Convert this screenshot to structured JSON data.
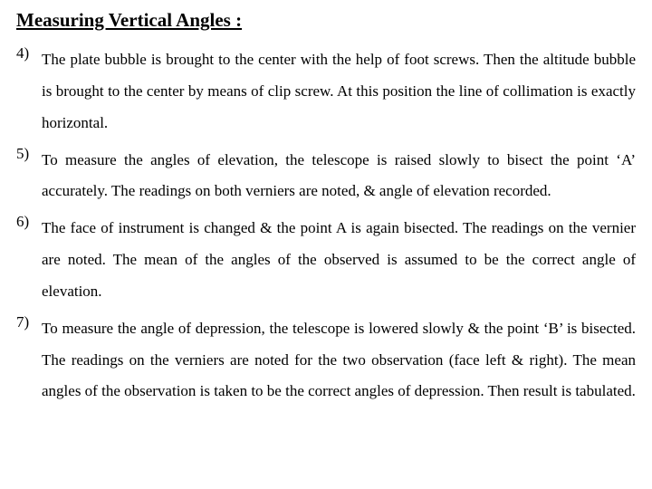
{
  "heading": "Measuring Vertical Angles :",
  "items": [
    {
      "marker": "4)",
      "text": "The plate bubble is brought to the center with the help of foot screws. Then the altitude bubble is brought to the center by means of clip screw. At this position the line of collimation is exactly horizontal."
    },
    {
      "marker": "5)",
      "text": "To measure the angles of elevation, the telescope is raised slowly to bisect the point ‘A’ accurately. The readings on both verniers are noted, & angle of elevation recorded."
    },
    {
      "marker": "6)",
      "text": "The face of instrument is changed & the point A is again bisected. The readings on the vernier are noted. The mean of the angles of the observed is assumed to be the correct angle of elevation."
    },
    {
      "marker": "7)",
      "text": "To measure the angle of depression, the telescope is lowered slowly & the point ‘B’ is bisected. The readings on the verniers are noted for the two observation (face left & right). The mean angles of the observation is taken to be the correct angles of depression. Then result is tabulated."
    }
  ],
  "colors": {
    "background": "#ffffff",
    "text": "#000000"
  },
  "typography": {
    "heading_fontsize": 21,
    "heading_weight": "bold",
    "body_fontsize": 17,
    "line_height": 2.05,
    "font_family": "Times New Roman"
  }
}
